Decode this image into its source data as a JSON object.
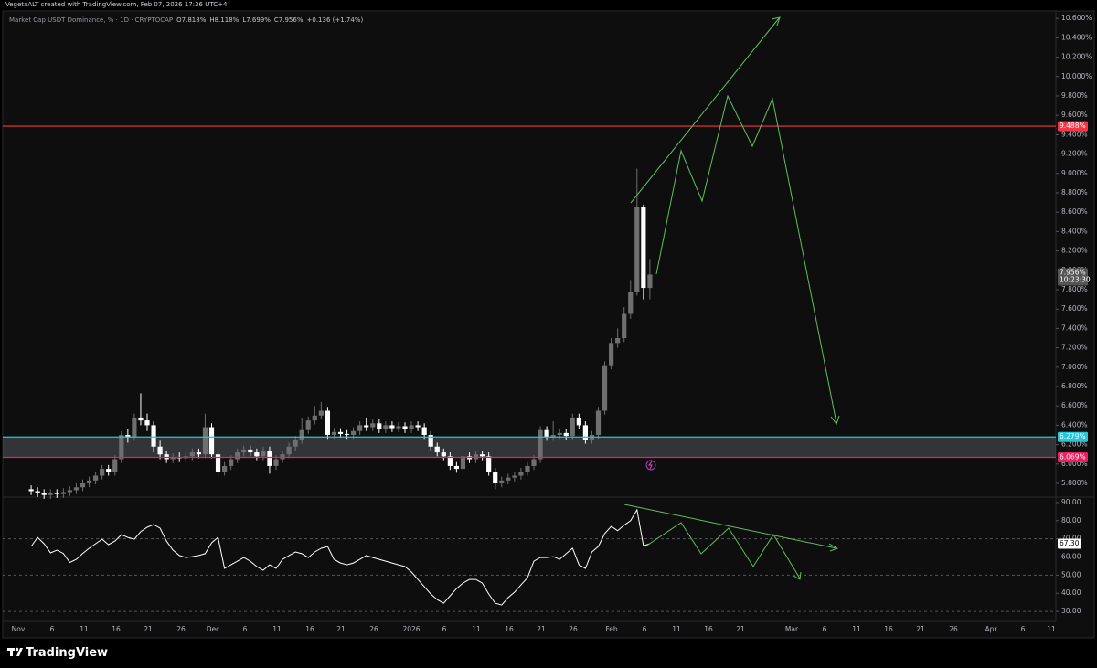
{
  "header": {
    "credit": "VegetaALT created with TradingView.com, Feb 07, 2026 17:36 UTC+4",
    "logo": "TradingView"
  },
  "chart_data": [
    {
      "type": "candlestick",
      "title": "Market Cap USDT Dominance, % · 1D · CRYPTOCAP",
      "legend": [
        "O7.818%",
        "H8.118%",
        "L7.699%",
        "C7.956%",
        "+0.136 (+1.74%)"
      ],
      "up_color": "#6f6f6f",
      "down_color": "#ffffff",
      "open": [
        5.74,
        5.72,
        5.7,
        5.68,
        5.7,
        5.69,
        5.71,
        5.73,
        5.76,
        5.8,
        5.83,
        5.88,
        5.95,
        5.92,
        6.05,
        6.3,
        6.28,
        6.48,
        6.45,
        6.4,
        6.18,
        6.1,
        6.05,
        6.07,
        6.06,
        6.08,
        6.12,
        6.1,
        6.38,
        6.1,
        5.92,
        5.98,
        6.05,
        6.12,
        6.15,
        6.12,
        6.08,
        6.14,
        5.98,
        6.05,
        6.1,
        6.18,
        6.25,
        6.35,
        6.45,
        6.5,
        6.55,
        6.3,
        6.33,
        6.31,
        6.3,
        6.34,
        6.4,
        6.38,
        6.42,
        6.36,
        6.4,
        6.37,
        6.39,
        6.36,
        6.4,
        6.38,
        6.3,
        6.18,
        6.12,
        6.08,
        5.98,
        5.95,
        6.08,
        6.05,
        6.1,
        6.08,
        5.92,
        5.8,
        5.83,
        5.86,
        5.88,
        5.92,
        5.98,
        6.05,
        6.35,
        6.28,
        6.3,
        6.32,
        6.29,
        6.48,
        6.4,
        6.25,
        6.3,
        6.55,
        7.02,
        7.25,
        7.3,
        7.55,
        7.78,
        8.65,
        7.818
      ],
      "high": [
        5.78,
        5.76,
        5.74,
        5.74,
        5.74,
        5.75,
        5.77,
        5.8,
        5.84,
        5.87,
        5.92,
        5.99,
        5.99,
        6.09,
        6.34,
        6.36,
        6.52,
        6.73,
        6.52,
        6.44,
        6.24,
        6.14,
        6.11,
        6.12,
        6.12,
        6.16,
        6.16,
        6.52,
        6.42,
        6.14,
        6.02,
        6.09,
        6.16,
        6.19,
        6.19,
        6.16,
        6.18,
        6.18,
        6.09,
        6.14,
        6.22,
        6.29,
        6.48,
        6.49,
        6.6,
        6.64,
        6.59,
        6.37,
        6.37,
        6.35,
        6.38,
        6.44,
        6.48,
        6.46,
        6.46,
        6.44,
        6.44,
        6.43,
        6.43,
        6.44,
        6.44,
        6.42,
        6.34,
        6.22,
        6.16,
        6.12,
        6.02,
        6.12,
        6.12,
        6.14,
        6.14,
        6.12,
        5.96,
        5.87,
        5.9,
        5.92,
        5.96,
        6.02,
        6.09,
        6.39,
        6.39,
        6.44,
        6.36,
        6.36,
        6.52,
        6.52,
        6.44,
        6.34,
        6.59,
        7.06,
        7.3,
        7.4,
        7.62,
        7.9,
        9.05,
        8.68,
        8.118
      ],
      "low": [
        5.68,
        5.66,
        5.64,
        5.64,
        5.65,
        5.65,
        5.67,
        5.69,
        5.72,
        5.76,
        5.79,
        5.84,
        5.88,
        5.88,
        6.01,
        6.22,
        6.24,
        6.4,
        6.34,
        6.12,
        6.05,
        6.01,
        6.01,
        6.02,
        6.02,
        6.04,
        6.06,
        6.06,
        6.06,
        5.86,
        5.88,
        5.94,
        6.01,
        6.08,
        6.08,
        6.04,
        6.04,
        5.9,
        5.94,
        6.01,
        6.06,
        6.14,
        6.21,
        6.31,
        6.41,
        6.46,
        6.26,
        6.26,
        6.27,
        6.26,
        6.26,
        6.3,
        6.34,
        6.34,
        6.32,
        6.32,
        6.33,
        6.33,
        6.32,
        6.32,
        6.34,
        6.26,
        6.14,
        6.08,
        6.04,
        5.94,
        5.91,
        5.91,
        6.01,
        6.01,
        6.04,
        5.88,
        5.74,
        5.76,
        5.79,
        5.82,
        5.84,
        5.88,
        5.94,
        6.01,
        6.24,
        6.24,
        6.26,
        6.25,
        6.25,
        6.36,
        6.21,
        6.21,
        6.26,
        6.51,
        6.98,
        7.2,
        7.26,
        7.5,
        7.74,
        7.7,
        7.699
      ],
      "close": [
        5.72,
        5.7,
        5.68,
        5.7,
        5.69,
        5.71,
        5.73,
        5.76,
        5.8,
        5.83,
        5.88,
        5.95,
        5.92,
        6.05,
        6.3,
        6.28,
        6.48,
        6.45,
        6.4,
        6.18,
        6.1,
        6.05,
        6.07,
        6.06,
        6.08,
        6.12,
        6.1,
        6.38,
        6.1,
        5.92,
        5.98,
        6.05,
        6.12,
        6.15,
        6.12,
        6.08,
        6.14,
        5.98,
        6.05,
        6.1,
        6.18,
        6.25,
        6.35,
        6.45,
        6.5,
        6.55,
        6.3,
        6.33,
        6.31,
        6.3,
        6.34,
        6.4,
        6.38,
        6.42,
        6.36,
        6.4,
        6.37,
        6.39,
        6.36,
        6.4,
        6.38,
        6.3,
        6.18,
        6.12,
        6.08,
        5.98,
        5.95,
        6.08,
        6.05,
        6.1,
        6.08,
        5.92,
        5.8,
        5.83,
        5.86,
        5.88,
        5.92,
        5.98,
        6.05,
        6.35,
        6.28,
        6.3,
        6.32,
        6.29,
        6.48,
        6.4,
        6.25,
        6.3,
        6.55,
        7.02,
        7.25,
        7.3,
        7.55,
        7.78,
        8.65,
        7.818,
        7.956
      ],
      "current_label": "7.956%",
      "countdown": "10:23:30",
      "levels": [
        {
          "value": 9.488,
          "label": "9.488%",
          "color": "#f23645"
        },
        {
          "value": 6.279,
          "label": "6.279%",
          "color": "#26c6da"
        },
        {
          "value": 6.069,
          "label": "6.069%",
          "color": "#e91e63"
        }
      ],
      "ylim": [
        5.668,
        10.715
      ],
      "yticks": [
        {
          "value": 5.8,
          "label": "5.800%"
        },
        {
          "value": 6.0,
          "label": "6.000%"
        },
        {
          "value": 6.2,
          "label": "6.200%"
        },
        {
          "value": 6.4,
          "label": "6.400%"
        },
        {
          "value": 6.6,
          "label": "6.600%"
        },
        {
          "value": 6.8,
          "label": "6.800%"
        },
        {
          "value": 7.0,
          "label": "7.000%"
        },
        {
          "value": 7.2,
          "label": "7.200%"
        },
        {
          "value": 7.4,
          "label": "7.400%"
        },
        {
          "value": 7.6,
          "label": "7.600%"
        },
        {
          "value": 7.8,
          "label": "7.800%"
        },
        {
          "value": 8.0,
          "label": "8.000%"
        },
        {
          "value": 8.2,
          "label": "8.200%"
        },
        {
          "value": 8.4,
          "label": "8.400%"
        },
        {
          "value": 8.6,
          "label": "8.600%"
        },
        {
          "value": 8.8,
          "label": "8.800%"
        },
        {
          "value": 9.0,
          "label": "9.000%"
        },
        {
          "value": 9.2,
          "label": "9.200%"
        },
        {
          "value": 9.4,
          "label": "9.400%"
        },
        {
          "value": 9.6,
          "label": "9.600%"
        },
        {
          "value": 9.8,
          "label": "9.800%"
        },
        {
          "value": 10.0,
          "label": "10.000%"
        },
        {
          "value": 10.2,
          "label": "10.200%"
        },
        {
          "value": 10.4,
          "label": "10.400%"
        },
        {
          "value": 10.6,
          "label": "10.600%"
        }
      ],
      "grid": false
    },
    {
      "type": "line",
      "color": "#ffffff",
      "values": [
        65.8,
        70.8,
        67.3,
        62.3,
        63.8,
        62,
        57,
        58.7,
        62,
        64.8,
        67.3,
        69.8,
        66.8,
        68.8,
        72.3,
        70.8,
        69.8,
        73.9,
        76.4,
        77.9,
        75.9,
        68.8,
        63.8,
        60.8,
        59.7,
        60.2,
        60.8,
        61.8,
        67.8,
        70.8,
        53.7,
        55.7,
        57.7,
        59.7,
        57.7,
        54.7,
        52.7,
        55.7,
        53.7,
        58.7,
        60.8,
        62.8,
        61.8,
        59.7,
        62.8,
        64.8,
        65.8,
        58.7,
        56.7,
        55.7,
        56.7,
        58.7,
        60.8,
        59.7,
        58.7,
        57.7,
        56.7,
        55.7,
        54.7,
        51.7,
        47.6,
        43.6,
        39.6,
        36.5,
        34.5,
        38.6,
        42.6,
        45.6,
        47.6,
        47.6,
        45.6,
        39.6,
        34.5,
        33.5,
        37.6,
        40.6,
        44.6,
        48.6,
        57.7,
        59.7,
        59.7,
        60.2,
        58.7,
        61.8,
        64.8,
        55.7,
        53.7,
        62.8,
        65.8,
        72.9,
        76.9,
        74.5,
        77.5,
        80,
        86,
        66.2,
        67.3
      ],
      "last_label": "67.30",
      "dashed_levels": [
        70,
        50,
        30
      ],
      "ylim": [
        24.5,
        92.5
      ],
      "yticks": [
        {
          "value": 30,
          "label": "30.00"
        },
        {
          "value": 40,
          "label": "40.00"
        },
        {
          "value": 50,
          "label": "50.00"
        },
        {
          "value": 60,
          "label": "60.00"
        },
        {
          "value": 70,
          "label": "70.00"
        },
        {
          "value": 80,
          "label": "80.00"
        },
        {
          "value": 90,
          "label": "90.00"
        }
      ],
      "x_labels": [
        "Nov",
        "6",
        "11",
        "16",
        "21",
        "26",
        "Dec",
        "6",
        "11",
        "16",
        "21",
        "26",
        "2026",
        "6",
        "11",
        "16",
        "21",
        "26",
        "Feb",
        "6",
        "11",
        "16",
        "21",
        "Mar",
        "6",
        "11",
        "16",
        "21",
        "26",
        "Apr",
        "6",
        "11"
      ]
    }
  ]
}
